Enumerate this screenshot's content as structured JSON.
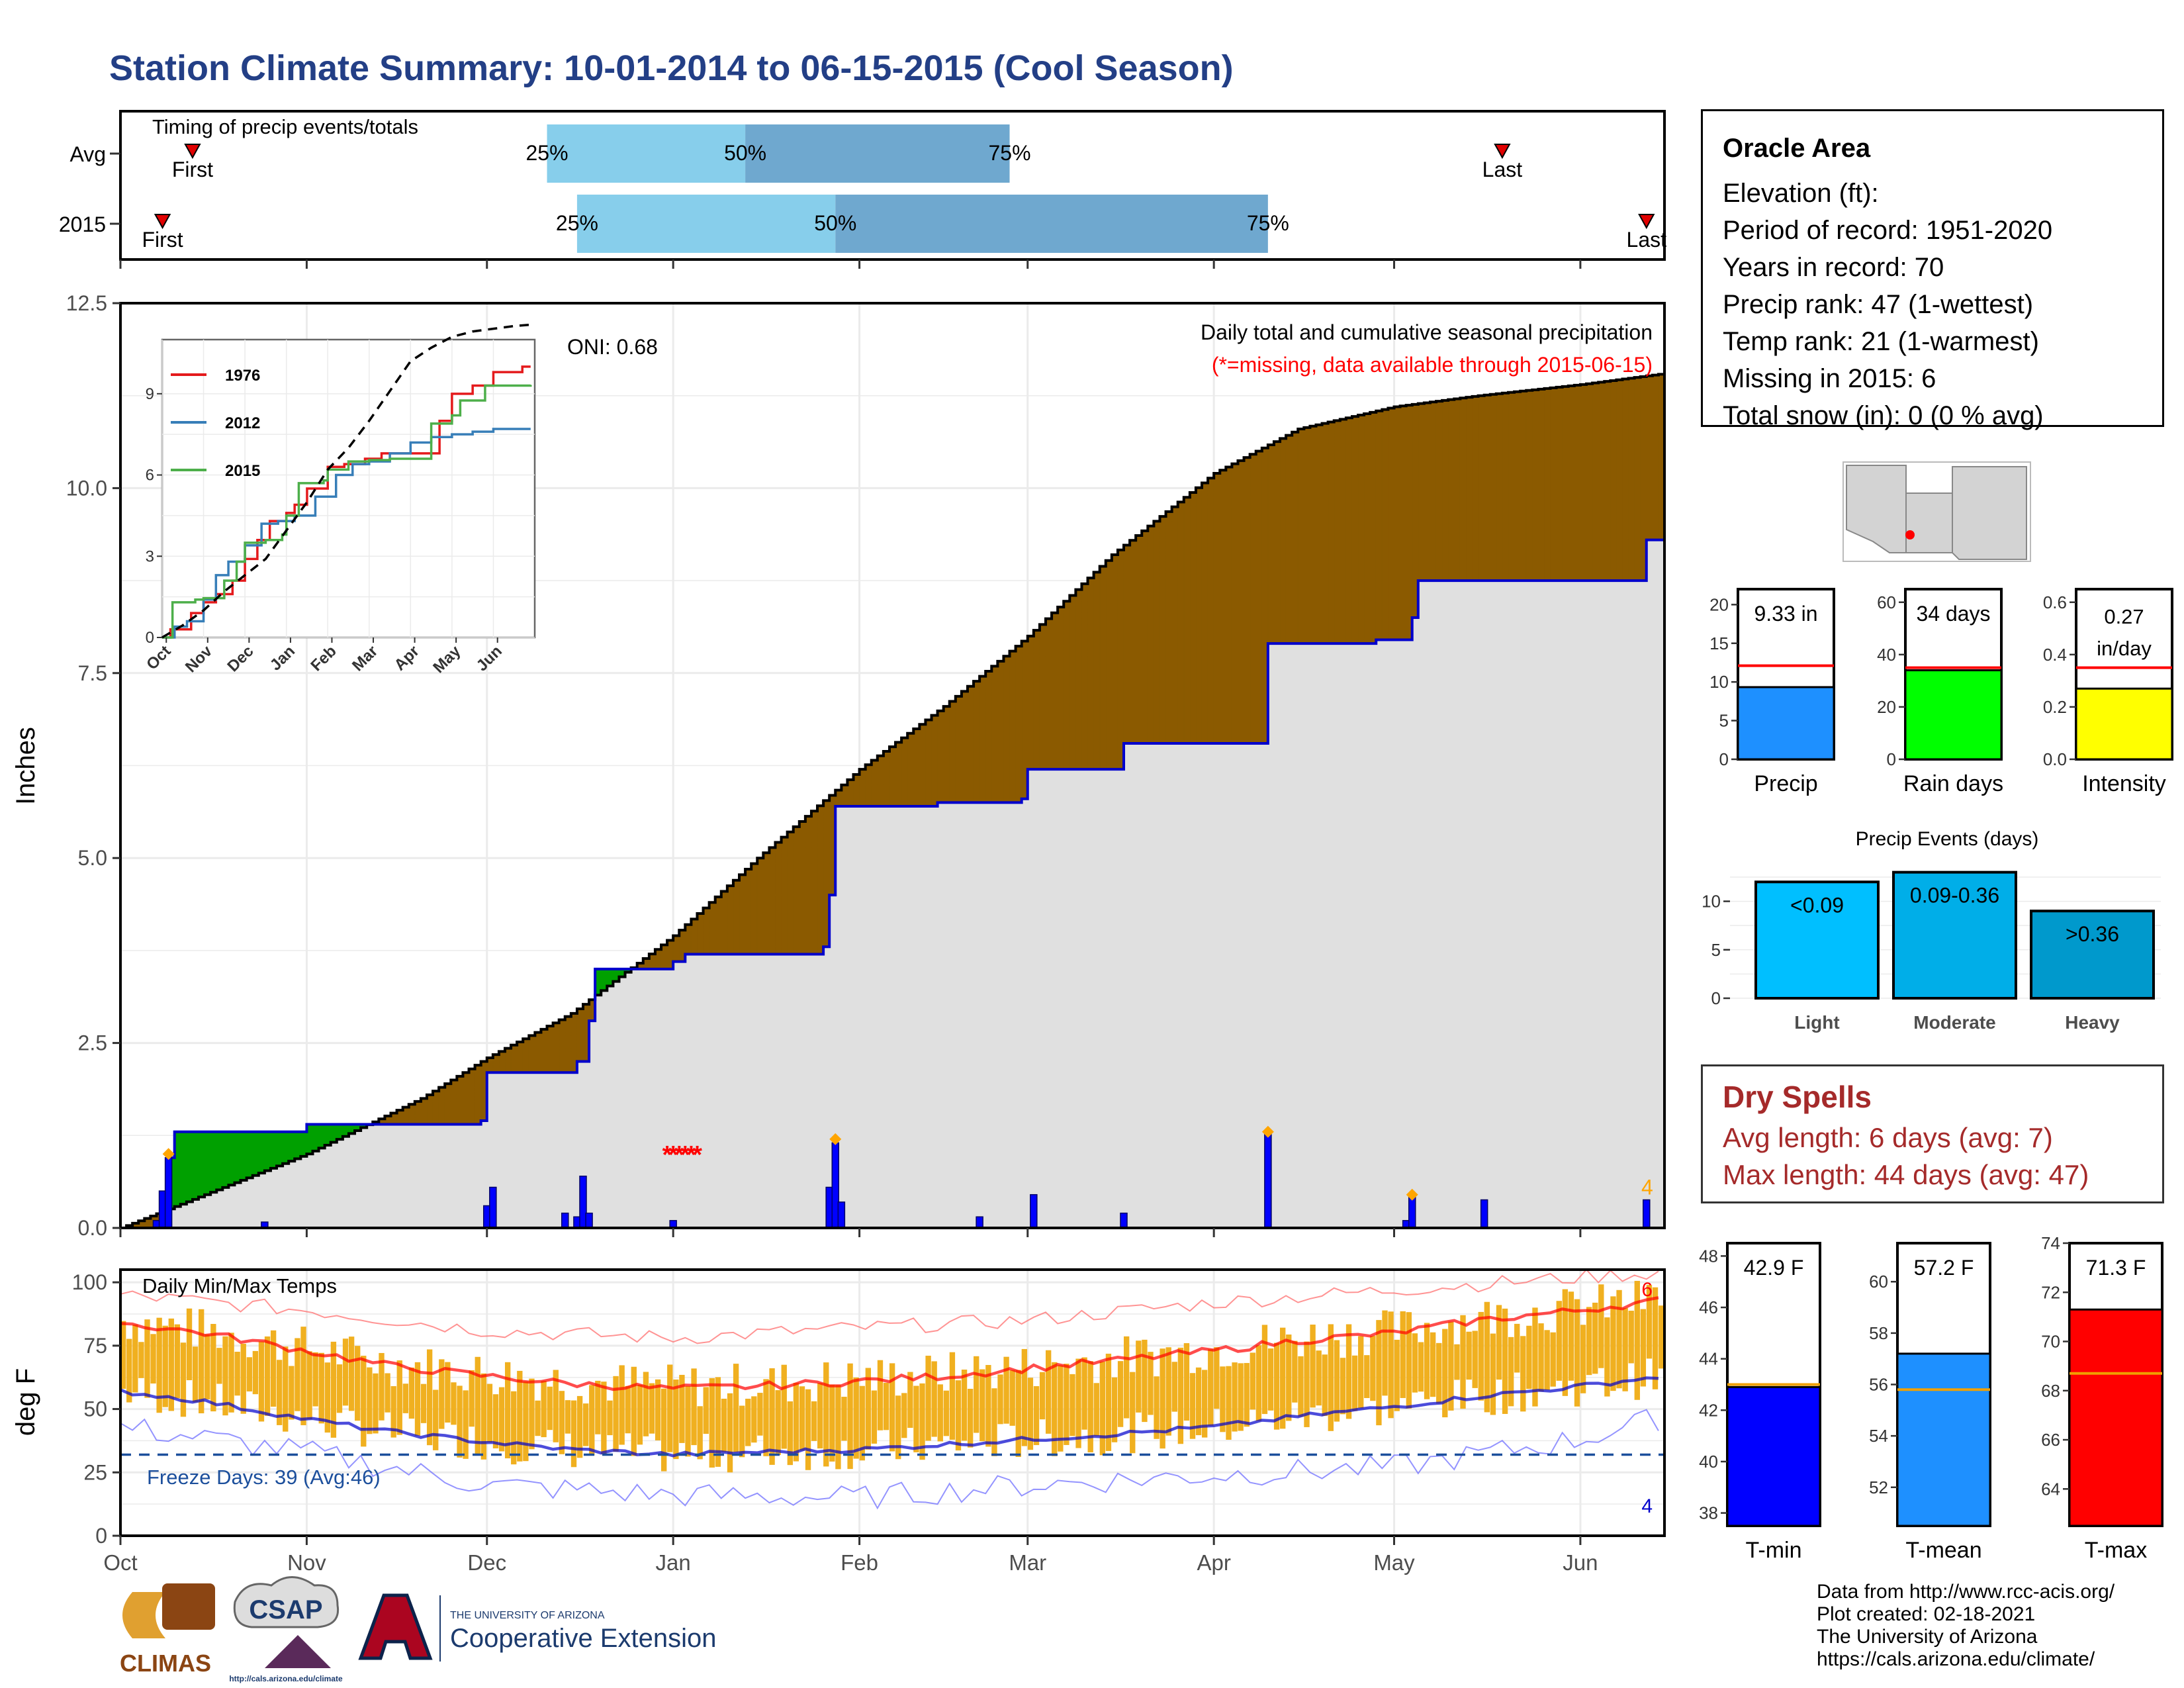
{
  "title": "Station Climate Summary: 10-01-2014 to 06-15-2015 (Cool Season)",
  "colors": {
    "title": "#233f86",
    "cum_fill": "#8b5a00",
    "clim_fill": "#e0e0e0",
    "obs_line": "#0000cc",
    "daily_bar": "#0000ff",
    "deficit_fill": "#00a000",
    "missing": "#ff0000",
    "temp_bar": "#f0b020",
    "tmax_line": "#ff0000",
    "tmin_line": "#0000cc",
    "freeze_line": "#1c4f9c",
    "dry_text": "#a52a2a"
  },
  "station": {
    "name": "Oracle Area",
    "elevation": "Elevation (ft):",
    "period": "Period of record: 1951-2020",
    "years": "Years in record: 70",
    "precip_rank": "Precip rank: 47 (1-wettest)",
    "temp_rank": "Temp rank: 21 (1-warmest)",
    "missing": "Missing in 2015: 6",
    "snow": "Total snow (in): 0 (0 % avg)"
  },
  "dry_spells": {
    "title": "Dry Spells",
    "avg": "Avg length: 6 days (avg: 7)",
    "max": "Max length: 44 days (avg: 47)"
  },
  "credits": [
    "Data from http://www.rcc-acis.org/",
    "Plot created: 02-18-2021",
    "The University of Arizona",
    "https://cals.arizona.edu/climate/"
  ],
  "logos": {
    "climas": "CLIMAS",
    "csap": "CSAP",
    "csap_url": "http://cals.arizona.edu/climate",
    "ua_small": "THE UNIVERSITY OF ARIZONA",
    "coop": "Cooperative Extension"
  },
  "chart_data": [
    {
      "type": "bar",
      "title": "Timing of precip events/totals",
      "categories": [
        "Avg",
        "2015"
      ],
      "percentile_labels": [
        "25%",
        "50%",
        "75%"
      ],
      "first_label": "First",
      "last_label": "Last",
      "avg": {
        "first": "2014-10-13",
        "p25": "2014-12-11",
        "p50": "2015-01-13",
        "p75": "2015-02-26",
        "last": "2015-05-19"
      },
      "y2015": {
        "first": "2014-10-08",
        "p25": "2014-12-16",
        "p50": "2015-01-28",
        "p75": "2015-04-10",
        "last": "2015-06-12"
      }
    },
    {
      "type": "area",
      "title": "Daily total and cumulative seasonal precipitation",
      "subtitle": "(*=missing, data available through 2015-06-15)",
      "annotation": "ONI: 0.68",
      "ylabel": "Inches",
      "xlim": [
        "2014-10-01",
        "2015-06-15"
      ],
      "ylim": [
        0,
        12.5
      ],
      "yticks": [
        "0.0",
        "2.5",
        "5.0",
        "7.5",
        "10.0",
        "12.5"
      ],
      "xtick_labels": [
        "Oct",
        "Nov",
        "Dec",
        "Jan",
        "Feb",
        "Mar",
        "Apr",
        "May",
        "Jun"
      ],
      "heavy_count_label": "4",
      "cumulative_avg": {
        "x": [
          "2014-10-01",
          "2014-10-15",
          "2014-11-01",
          "2014-11-20",
          "2014-12-01",
          "2014-12-15",
          "2015-01-01",
          "2015-01-15",
          "2015-02-01",
          "2015-02-15",
          "2015-03-01",
          "2015-03-15",
          "2015-04-01",
          "2015-04-15",
          "2015-05-01",
          "2015-05-15",
          "2015-06-01",
          "2015-06-15"
        ],
        "y": [
          0,
          0.45,
          1.0,
          1.75,
          2.3,
          2.9,
          3.95,
          5.0,
          6.2,
          7.05,
          8.0,
          9.1,
          10.2,
          10.8,
          11.1,
          11.25,
          11.4,
          11.55
        ]
      },
      "cumulative_2015": {
        "x": [
          "2014-10-01",
          "2014-10-08",
          "2014-10-09",
          "2014-10-10",
          "2014-10-21",
          "2014-11-01",
          "2014-11-30",
          "2014-12-01",
          "2014-12-16",
          "2014-12-18",
          "2014-12-19",
          "2015-01-01",
          "2015-01-03",
          "2015-01-26",
          "2015-01-27",
          "2015-01-28",
          "2015-02-14",
          "2015-02-28",
          "2015-03-01",
          "2015-03-17",
          "2015-04-09",
          "2015-04-10",
          "2015-04-28",
          "2015-05-04",
          "2015-05-05",
          "2015-06-12",
          "2015-06-15"
        ],
        "y": [
          0,
          0.08,
          0.95,
          1.3,
          1.3,
          1.4,
          1.45,
          2.1,
          2.25,
          2.8,
          3.5,
          3.6,
          3.7,
          3.8,
          4.5,
          5.7,
          5.75,
          5.8,
          6.2,
          6.55,
          6.55,
          7.9,
          7.95,
          8.25,
          8.75,
          9.3,
          9.33
        ]
      },
      "daily_bars": {
        "x": [
          "2014-10-07",
          "2014-10-08",
          "2014-10-09",
          "2014-10-25",
          "2014-12-01",
          "2014-12-02",
          "2014-12-14",
          "2014-12-16",
          "2014-12-17",
          "2014-12-18",
          "2015-01-01",
          "2015-01-27",
          "2015-01-28",
          "2015-01-29",
          "2015-02-21",
          "2015-03-02",
          "2015-03-17",
          "2015-04-10",
          "2015-05-03",
          "2015-05-04",
          "2015-05-16",
          "2015-06-12"
        ],
        "y": [
          0.1,
          0.5,
          0.95,
          0.08,
          0.3,
          0.55,
          0.2,
          0.15,
          0.7,
          0.2,
          0.1,
          0.55,
          1.15,
          0.35,
          0.15,
          0.45,
          0.2,
          1.3,
          0.1,
          0.45,
          0.38,
          0.38
        ]
      },
      "heavy_markers": {
        "x": [
          "2014-10-09",
          "2015-01-28",
          "2015-04-10",
          "2015-05-04"
        ],
        "y": [
          1.0,
          1.2,
          1.3,
          0.45
        ]
      },
      "missing_markers": {
        "x": [
          "2014-12-31",
          "2015-01-01",
          "2015-01-02",
          "2015-01-03",
          "2015-01-04",
          "2015-01-05"
        ],
        "y": [
          1.0,
          1.0,
          1.0,
          1.0,
          1.0,
          1.0
        ]
      }
    },
    {
      "type": "line",
      "title": "",
      "xlabel": "",
      "ylabel": "",
      "ylim": [
        0,
        11
      ],
      "yticks": [
        "0",
        "3",
        "6",
        "9"
      ],
      "xtick_labels": [
        "Oct",
        "Nov",
        "Dec",
        "Jan",
        "Feb",
        "Mar",
        "Apr",
        "May",
        "Jun"
      ],
      "series": [
        {
          "name": "1976",
          "color": "#e41a1c",
          "x": [
            0,
            0.2,
            0.7,
            1.0,
            1.3,
            1.7,
            2.0,
            2.3,
            2.6,
            3.0,
            3.2,
            3.5,
            4.0,
            4.4,
            4.9,
            5.3,
            6.0,
            6.7,
            7.0,
            7.5,
            8.0,
            8.7,
            8.9
          ],
          "y": [
            0,
            0.3,
            0.9,
            1.3,
            1.6,
            2.1,
            2.9,
            3.6,
            4.3,
            4.6,
            4.9,
            5.5,
            6.3,
            6.4,
            6.6,
            6.8,
            6.8,
            8.0,
            9.0,
            9.3,
            9.8,
            10.0,
            10.0
          ]
        },
        {
          "name": "2012",
          "color": "#377eb8",
          "x": [
            0,
            0.3,
            0.6,
            1.0,
            1.3,
            1.6,
            2.0,
            2.4,
            2.8,
            3.2,
            3.7,
            4.2,
            4.6,
            5.0,
            5.5,
            6.0,
            6.5,
            7.0,
            7.5,
            8.0,
            8.5,
            8.9
          ],
          "y": [
            0,
            0.4,
            0.6,
            1.4,
            2.3,
            2.8,
            3.4,
            4.2,
            4.3,
            4.5,
            5.2,
            6.0,
            6.4,
            6.5,
            6.8,
            7.2,
            7.4,
            7.5,
            7.6,
            7.7,
            7.7,
            7.7
          ]
        },
        {
          "name": "2015",
          "color": "#4daf4a",
          "x": [
            0,
            0.25,
            0.8,
            1.0,
            1.5,
            1.8,
            2.0,
            2.5,
            2.9,
            3.0,
            3.3,
            3.9,
            4.0,
            4.5,
            5.0,
            5.5,
            6.0,
            6.5,
            7.0,
            7.2,
            7.8,
            8.3,
            8.9
          ],
          "y": [
            0,
            1.3,
            1.4,
            1.45,
            2.1,
            2.8,
            3.5,
            3.6,
            3.8,
            4.5,
            5.7,
            5.8,
            6.2,
            6.5,
            6.55,
            6.6,
            6.6,
            7.9,
            8.2,
            8.75,
            9.3,
            9.3,
            9.33
          ]
        }
      ],
      "reference": {
        "name": "avg",
        "style": "dashed",
        "x": [
          0,
          0.5,
          1.0,
          1.5,
          2.0,
          2.5,
          3.0,
          3.5,
          4.0,
          4.5,
          5.0,
          5.5,
          6.0,
          6.5,
          7.0,
          7.5,
          8.0,
          8.5,
          8.9
        ],
        "y": [
          0,
          0.45,
          1.0,
          1.7,
          2.3,
          2.9,
          3.95,
          5.0,
          6.2,
          7.0,
          8.0,
          9.1,
          10.2,
          10.7,
          11.1,
          11.3,
          11.4,
          11.5,
          11.55
        ]
      }
    },
    {
      "type": "line",
      "title": "Daily Min/Max Temps",
      "annotation": "Freeze Days: 39 (Avg:46)",
      "ylabel": "deg F",
      "ylim": [
        0,
        105
      ],
      "yticks": [
        "0",
        "25",
        "50",
        "75",
        "100"
      ],
      "xtick_labels": [
        "Oct",
        "Nov",
        "Dec",
        "Jan",
        "Feb",
        "Mar",
        "Apr",
        "May",
        "Jun"
      ],
      "max_count_label": "6",
      "min_count_label": "4",
      "freeze_line": 32,
      "avg_max": {
        "x": [
          "2014-10-01",
          "2014-10-15",
          "2014-11-01",
          "2014-11-15",
          "2014-12-01",
          "2014-12-15",
          "2015-01-01",
          "2015-01-15",
          "2015-02-01",
          "2015-02-15",
          "2015-03-01",
          "2015-03-15",
          "2015-04-01",
          "2015-04-15",
          "2015-05-01",
          "2015-05-15",
          "2015-06-01",
          "2015-06-15"
        ],
        "y": [
          84,
          80,
          73,
          67,
          63,
          60,
          58,
          59,
          61,
          63,
          66,
          69,
          73,
          77,
          80,
          85,
          89,
          93
        ]
      },
      "avg_min": {
        "x": [
          "2014-10-01",
          "2014-10-15",
          "2014-11-01",
          "2014-11-15",
          "2014-12-01",
          "2014-12-15",
          "2015-01-01",
          "2015-01-15",
          "2015-02-01",
          "2015-02-15",
          "2015-03-01",
          "2015-03-15",
          "2015-04-01",
          "2015-04-15",
          "2015-05-01",
          "2015-05-15",
          "2015-06-01",
          "2015-06-15"
        ],
        "y": [
          57,
          53,
          46,
          41,
          37,
          34,
          32,
          33,
          34,
          36,
          38,
          40,
          43,
          47,
          51,
          55,
          59,
          63
        ]
      },
      "record_max": {
        "x": [
          "2014-10-01",
          "2014-11-01",
          "2014-12-01",
          "2015-01-01",
          "2015-02-01",
          "2015-03-01",
          "2015-04-01",
          "2015-05-01",
          "2015-06-01",
          "2015-06-15"
        ],
        "y": [
          95,
          89,
          81,
          78,
          82,
          85,
          92,
          97,
          102,
          104
        ]
      },
      "record_min": {
        "x": [
          "2014-10-01",
          "2014-11-01",
          "2014-12-01",
          "2015-01-01",
          "2015-02-01",
          "2015-03-01",
          "2015-04-01",
          "2015-05-01",
          "2015-06-01",
          "2015-06-15"
        ],
        "y": [
          43,
          33,
          20,
          16,
          15,
          20,
          24,
          27,
          38,
          47
        ]
      }
    },
    {
      "type": "bar",
      "categories": [
        "Precip",
        "Rain days",
        "Intensity"
      ],
      "values": [
        9.33,
        34,
        0.27
      ],
      "averages": [
        12.1,
        35,
        0.35
      ],
      "labels": [
        "9.33 in",
        "34 days",
        "0.27 in/day"
      ],
      "ylims": [
        [
          0,
          22
        ],
        [
          0,
          65
        ],
        [
          0,
          0.65
        ]
      ],
      "yticks": [
        [
          "0",
          "5",
          "10",
          "15",
          "20"
        ],
        [
          "0",
          "20",
          "40",
          "60"
        ],
        [
          "0.0",
          "0.2",
          "0.4",
          "0.6"
        ]
      ],
      "colors": [
        "#1e90ff",
        "#00ff00",
        "#ffff00"
      ]
    },
    {
      "type": "bar",
      "title": "Precip Events (days)",
      "categories": [
        "Light",
        "Moderate",
        "Heavy"
      ],
      "values": [
        12,
        13,
        9
      ],
      "labels": [
        "<0.09",
        "0.09-0.36",
        ">0.36"
      ],
      "ylim": [
        0,
        14
      ],
      "yticks": [
        "0",
        "5",
        "10"
      ],
      "colors": [
        "#00bfff",
        "#00aee8",
        "#0099cc"
      ]
    },
    {
      "type": "bar",
      "categories": [
        "T-min",
        "T-mean",
        "T-max"
      ],
      "values": [
        42.9,
        57.2,
        71.3
      ],
      "averages": [
        43.0,
        55.8,
        68.7
      ],
      "labels": [
        "42.9 F",
        "57.2 F",
        "71.3 F"
      ],
      "ylims": [
        [
          37.5,
          48.5
        ],
        [
          50.5,
          61.5
        ],
        [
          62.5,
          74
        ]
      ],
      "yticks": [
        [
          "38",
          "40",
          "42",
          "44",
          "46",
          "48"
        ],
        [
          "52",
          "54",
          "56",
          "58",
          "60"
        ],
        [
          "64",
          "66",
          "68",
          "70",
          "72",
          "74"
        ]
      ],
      "colors": [
        "#0000ff",
        "#1e90ff",
        "#ff0000"
      ]
    }
  ]
}
